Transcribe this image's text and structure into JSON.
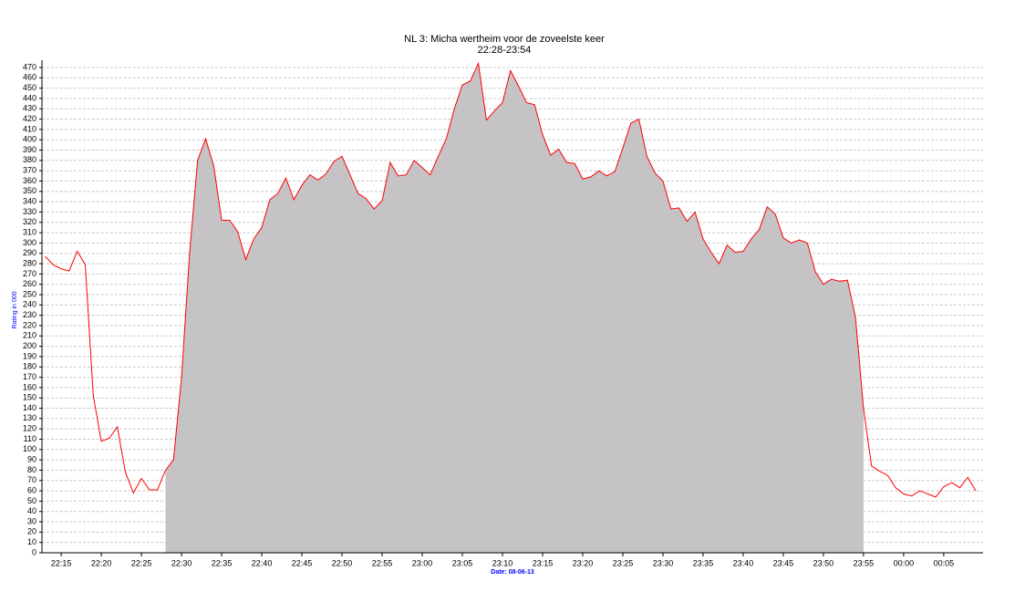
{
  "chart_data": {
    "type": "area",
    "title": "NL 3: Micha wertheim voor de zoveelste keer",
    "subtitle": "22:28-23:54",
    "ylabel": "Rating in 000",
    "xlabel": "Date: 08-06-13",
    "x": [
      1333,
      1334,
      1335,
      1336,
      1337,
      1338,
      1339,
      1340,
      1341,
      1342,
      1343,
      1344,
      1345,
      1346,
      1347,
      1348,
      1349,
      1350,
      1351,
      1352,
      1353,
      1354,
      1355,
      1356,
      1357,
      1358,
      1359,
      1360,
      1361,
      1362,
      1363,
      1364,
      1365,
      1366,
      1367,
      1368,
      1369,
      1370,
      1371,
      1372,
      1373,
      1374,
      1375,
      1376,
      1377,
      1378,
      1379,
      1380,
      1381,
      1382,
      1383,
      1384,
      1385,
      1386,
      1387,
      1388,
      1389,
      1390,
      1391,
      1392,
      1393,
      1394,
      1395,
      1396,
      1397,
      1398,
      1399,
      1400,
      1401,
      1402,
      1403,
      1404,
      1405,
      1406,
      1407,
      1408,
      1409,
      1410,
      1411,
      1412,
      1413,
      1414,
      1415,
      1416,
      1417,
      1418,
      1419,
      1420,
      1421,
      1422,
      1423,
      1424,
      1425,
      1426,
      1427,
      1428,
      1429,
      1430,
      1431,
      1432,
      1433,
      1434,
      1435,
      1436,
      1437,
      1438,
      1439,
      1440,
      1441,
      1442,
      1443,
      1444,
      1445,
      1446,
      1447,
      1448,
      1449
    ],
    "series": [
      {
        "color": "#ff0000",
        "fill": "#c6c3c6",
        "values": [
          287,
          279,
          275,
          273,
          292,
          279,
          152,
          108,
          111,
          122,
          78,
          58,
          72,
          61,
          61,
          80,
          90,
          170,
          290,
          380,
          401,
          375,
          322,
          322,
          311,
          284,
          304,
          315,
          342,
          348,
          363,
          342,
          356,
          366,
          361,
          367,
          379,
          384,
          366,
          348,
          343,
          333,
          341,
          378,
          365,
          366,
          380,
          373,
          366,
          384,
          401,
          430,
          453,
          457,
          474,
          419,
          428,
          436,
          467,
          452,
          436,
          434,
          405,
          385,
          391,
          378,
          377,
          362,
          364,
          370,
          365,
          369,
          392,
          416,
          420,
          384,
          368,
          360,
          333,
          334,
          321,
          330,
          304,
          291,
          280,
          298,
          291,
          292,
          304,
          313,
          335,
          328,
          305,
          300,
          303,
          300,
          272,
          260,
          265,
          263,
          264,
          228,
          140,
          84,
          79,
          75,
          63,
          57,
          55,
          60,
          57,
          54,
          64,
          68,
          63,
          73,
          60
        ]
      }
    ],
    "fill_range": [
      1348,
      1435
    ],
    "xlim": [
      1332.6,
      1449.9
    ],
    "xticks": [
      {
        "value": 1335,
        "label": "22:15"
      },
      {
        "value": 1340,
        "label": "22:20"
      },
      {
        "value": 1345,
        "label": "22:25"
      },
      {
        "value": 1350,
        "label": "22:30"
      },
      {
        "value": 1355,
        "label": "22:35"
      },
      {
        "value": 1360,
        "label": "22:40"
      },
      {
        "value": 1365,
        "label": "22:45"
      },
      {
        "value": 1370,
        "label": "22:50"
      },
      {
        "value": 1375,
        "label": "22:55"
      },
      {
        "value": 1380,
        "label": "23:00"
      },
      {
        "value": 1385,
        "label": "23:05"
      },
      {
        "value": 1390,
        "label": "23:10"
      },
      {
        "value": 1395,
        "label": "23:15"
      },
      {
        "value": 1400,
        "label": "23:20"
      },
      {
        "value": 1405,
        "label": "23:25"
      },
      {
        "value": 1410,
        "label": "23:30"
      },
      {
        "value": 1415,
        "label": "23:35"
      },
      {
        "value": 1420,
        "label": "23:40"
      },
      {
        "value": 1425,
        "label": "23:45"
      },
      {
        "value": 1430,
        "label": "23:50"
      },
      {
        "value": 1435,
        "label": "23:55"
      },
      {
        "value": 1440,
        "label": "00:00"
      },
      {
        "value": 1445,
        "label": "00:05"
      }
    ],
    "ylim": [
      0,
      470
    ],
    "yticks": [
      0,
      10,
      20,
      30,
      40,
      50,
      60,
      70,
      80,
      90,
      100,
      110,
      120,
      130,
      140,
      150,
      160,
      170,
      180,
      190,
      200,
      210,
      220,
      230,
      240,
      250,
      260,
      270,
      280,
      290,
      300,
      310,
      320,
      330,
      340,
      350,
      360,
      370,
      380,
      390,
      400,
      410,
      420,
      430,
      440,
      450,
      460,
      470
    ],
    "grid": true
  }
}
